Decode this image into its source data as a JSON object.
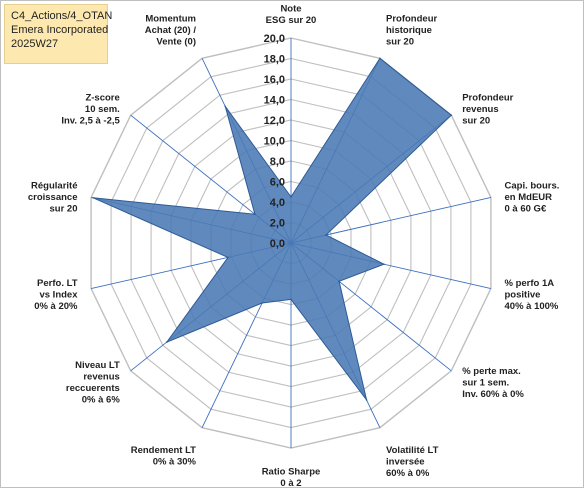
{
  "header": {
    "line1": "C4_Actions/4_OTAN",
    "line2": "Emera Incorporated",
    "line3": "2025W27"
  },
  "colors": {
    "fill": "#4a7ab5",
    "stroke": "#2e5b95",
    "spoke": "#3d6fc0",
    "grid": "#bfbfbf",
    "header_bg": "#fde9b0"
  },
  "chart_data": {
    "type": "radar",
    "title": "",
    "rmin": 0,
    "rmax": 20,
    "ticks": [
      "0,0",
      "2,0",
      "4,0",
      "6,0",
      "8,0",
      "10,0",
      "12,0",
      "14,0",
      "16,0",
      "18,0",
      "20,0"
    ],
    "categories": [
      {
        "label": [
          "Note",
          "ESG sur 20"
        ]
      },
      {
        "label": [
          "Profondeur",
          "historique",
          "sur 20"
        ]
      },
      {
        "label": [
          "Profondeur",
          "revenus",
          "sur 20"
        ]
      },
      {
        "label": [
          "Capi. bours.",
          "en MdEUR",
          "0 à 60 G€"
        ]
      },
      {
        "label": [
          "% perfo 1A",
          "positive",
          "40% à 100%"
        ]
      },
      {
        "label": [
          "% perte max.",
          "sur 1 sem.",
          "Inv. 60% à 0%"
        ]
      },
      {
        "label": [
          "Volatilité LT",
          "inversée",
          "60% à 0%"
        ]
      },
      {
        "label": [
          "Ratio Sharpe",
          "0 à 2"
        ]
      },
      {
        "label": [
          "Rendement LT",
          "0% à 30%"
        ]
      },
      {
        "label": [
          "Niveau LT",
          "revenus",
          "reccuerents",
          "0% à 6%"
        ]
      },
      {
        "label": [
          "Perfo. LT",
          "vs Index",
          "0% à 20%"
        ]
      },
      {
        "label": [
          "Régularité",
          "croissance",
          "sur 20"
        ]
      },
      {
        "label": [
          "Z-score",
          "10 sem.",
          "Inv. 2,5 à -2,5"
        ]
      },
      {
        "label": [
          "Momentum",
          "Achat (20) /",
          "Vente (0)"
        ]
      }
    ],
    "series": [
      {
        "values": [
          4.5,
          20.0,
          20.0,
          3.5,
          9.3,
          6.0,
          17.0,
          5.5,
          6.5,
          15.5,
          6.3,
          19.8,
          4.5,
          14.8
        ]
      }
    ]
  }
}
